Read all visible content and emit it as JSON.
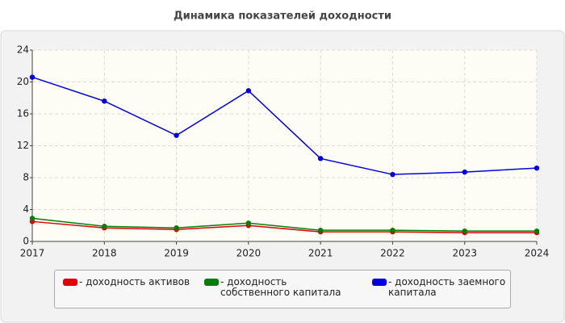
{
  "chart_data": {
    "type": "line",
    "title": "Динамика показателей доходности",
    "categories": [
      "2017",
      "2018",
      "2019",
      "2020",
      "2021",
      "2022",
      "2023",
      "2024"
    ],
    "series": [
      {
        "name": "- доходность активов",
        "color": "#e00000",
        "values": [
          2.5,
          1.7,
          1.5,
          2.0,
          1.2,
          1.2,
          1.1,
          1.1
        ]
      },
      {
        "name": "- доходность собственного капитала",
        "color": "#008000",
        "values": [
          2.9,
          1.9,
          1.7,
          2.3,
          1.4,
          1.4,
          1.3,
          1.3
        ]
      },
      {
        "name": "- доходность заемного капитала",
        "color": "#0000e0",
        "values": [
          20.6,
          17.6,
          13.3,
          18.9,
          10.4,
          8.4,
          8.7,
          9.2
        ]
      }
    ],
    "ylim": [
      0,
      24
    ],
    "yticks": [
      0,
      4,
      8,
      12,
      16,
      20,
      24
    ],
    "grid": true
  }
}
